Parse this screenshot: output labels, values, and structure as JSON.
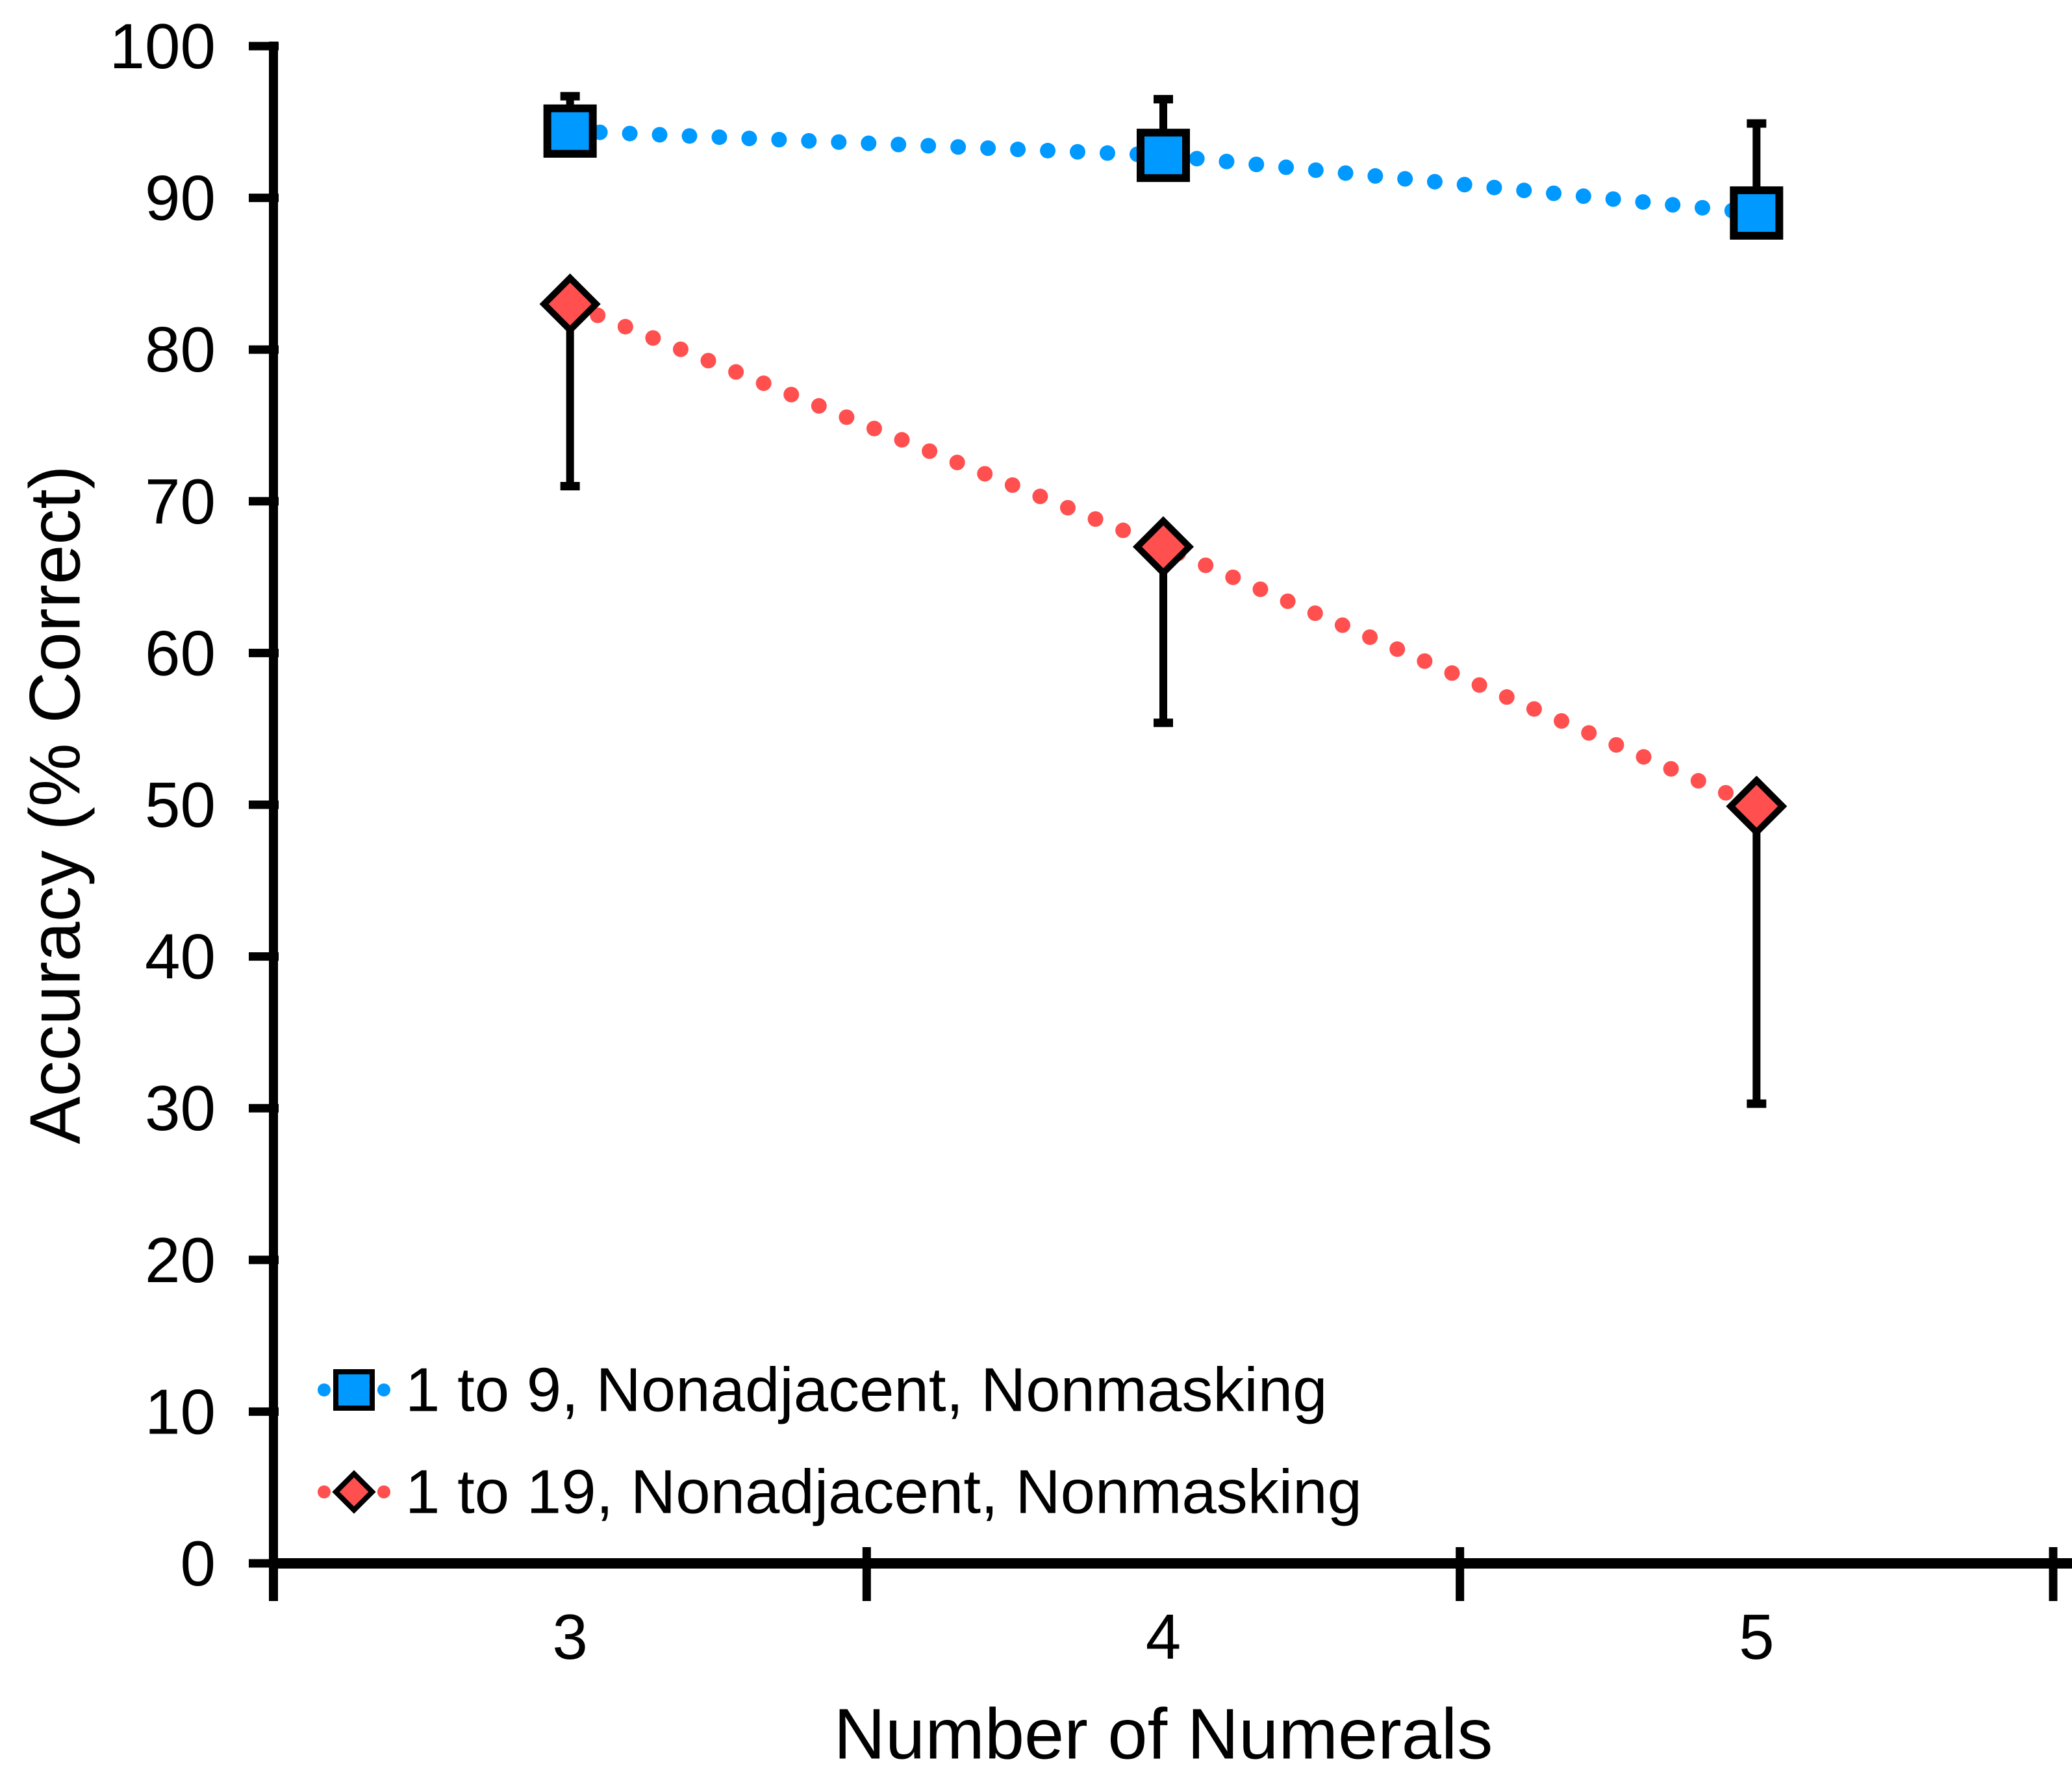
{
  "chart_data": {
    "type": "line",
    "title": "",
    "xlabel": "Number of Numerals",
    "ylabel": "Accuracy (% Correct)",
    "categories": [
      "3",
      "4",
      "5"
    ],
    "ylim": [
      0,
      100
    ],
    "y_tick_labels": [
      "0",
      "10",
      "20",
      "30",
      "40",
      "50",
      "60",
      "70",
      "80",
      "90",
      "100"
    ],
    "grid": false,
    "legend_position": "inside-bottom-left",
    "axis_color": "#000000",
    "background_color": "#FFFFFF",
    "series": [
      {
        "name": "1 to 9, Nonadjacent, Nonmasking",
        "marker": "square",
        "color": "#0099FF",
        "line_style": "dotted",
        "values": [
          94.4,
          92.8,
          89.0
        ],
        "error_up": [
          2.3,
          3.7,
          5.9
        ],
        "error_down": [
          0,
          0,
          0
        ]
      },
      {
        "name": "1 to 19, Nonadjacent, Nonmasking",
        "marker": "diamond",
        "color": "#FF4F4F",
        "line_style": "dotted",
        "values": [
          83.0,
          67.0,
          49.9
        ],
        "error_up": [
          0,
          0,
          0
        ],
        "error_down": [
          12.0,
          11.6,
          19.6
        ]
      }
    ]
  }
}
